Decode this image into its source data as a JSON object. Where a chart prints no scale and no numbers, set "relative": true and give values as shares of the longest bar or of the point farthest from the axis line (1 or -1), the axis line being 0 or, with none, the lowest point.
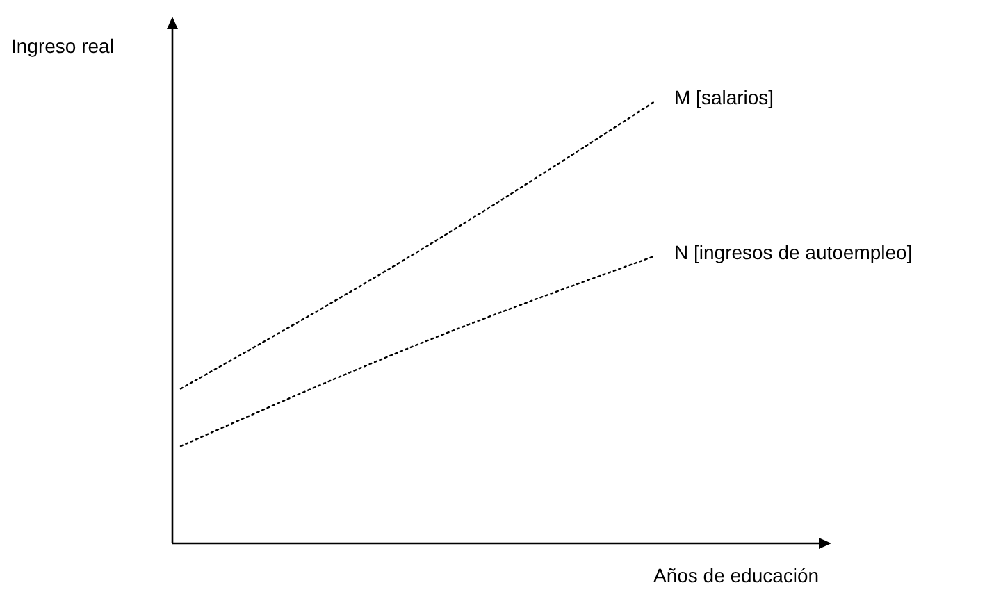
{
  "chart_data": {
    "type": "line",
    "relative": true,
    "xlabel": "Años de educación",
    "ylabel": "Ingreso real",
    "categories": [
      null,
      null,
      null
    ],
    "line_style": "dotted",
    "marker": "none",
    "series": [
      {
        "name": "M [salarios]",
        "color": "#000000",
        "values": [
          0.35,
          0.66,
          1
        ]
      },
      {
        "name": "N [ingresos de autoempleo]",
        "color": "#000000",
        "values": [
          0.22,
          0.45,
          0.65
        ]
      }
    ]
  }
}
